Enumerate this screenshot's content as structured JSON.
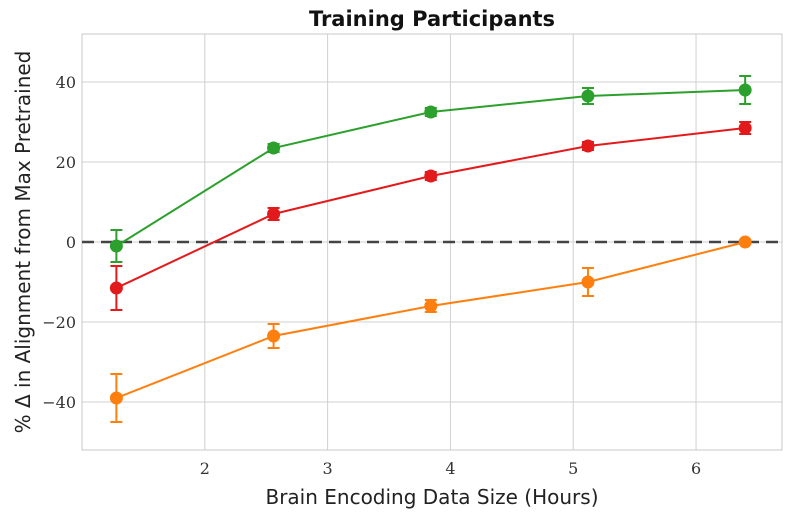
{
  "chart_data": {
    "type": "line",
    "title": "Training Participants",
    "xlabel": "Brain Encoding Data Size (Hours)",
    "ylabel": "% Δ in Alignment from Max Pretrained",
    "xlim": [
      1.0,
      6.7
    ],
    "ylim": [
      -52,
      52
    ],
    "xticks": [
      2,
      3,
      4,
      5,
      6
    ],
    "yticks": [
      -40,
      -20,
      0,
      20,
      40
    ],
    "grid": true,
    "reference_line": {
      "y": 0,
      "style": "dashed",
      "color": "#444444"
    },
    "x": [
      1.28,
      2.56,
      3.84,
      5.12,
      6.4
    ],
    "series": [
      {
        "color": "#2ca02c",
        "values": [
          -1,
          23.5,
          32.5,
          36.5,
          38
        ],
        "errors": [
          4,
          1,
          1,
          2,
          3.5
        ]
      },
      {
        "color": "#e31a1c",
        "values": [
          -11.5,
          7,
          16.5,
          24,
          28.5
        ],
        "errors": [
          5.5,
          1.5,
          1,
          1,
          1.5
        ]
      },
      {
        "color": "#ff7f0e",
        "values": [
          -39,
          -23.5,
          -16,
          -10,
          0
        ],
        "errors": [
          6,
          3,
          1.5,
          3.5,
          0.5
        ]
      }
    ]
  }
}
